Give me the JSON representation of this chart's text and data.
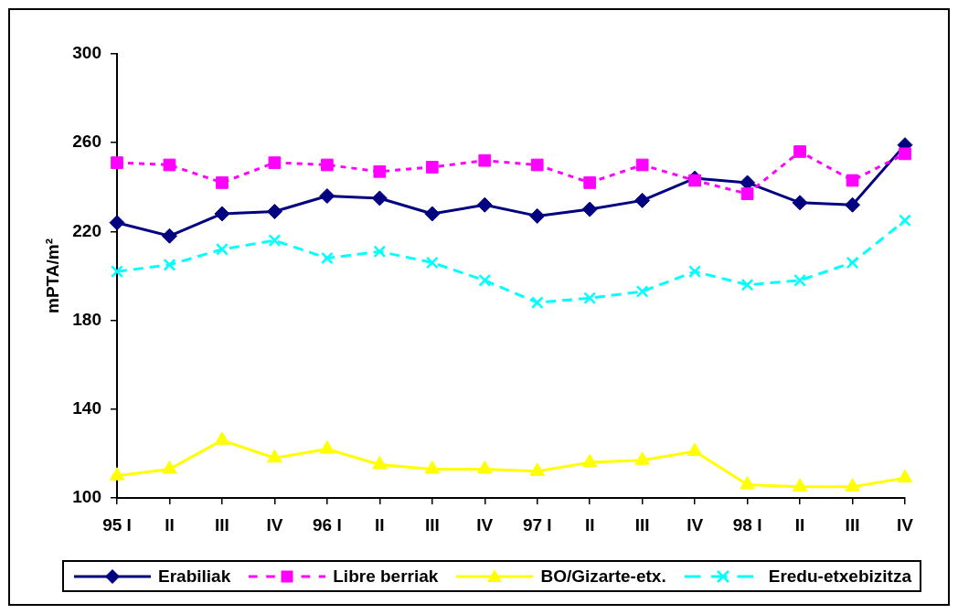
{
  "chart_data": {
    "type": "line",
    "ylabel": "mPTA/m²",
    "categories": [
      "95 I",
      "II",
      "III",
      "IV",
      "96 I",
      "II",
      "III",
      "IV",
      "97 I",
      "II",
      "III",
      "IV",
      "98 I",
      "II",
      "III",
      "IV"
    ],
    "series": [
      {
        "name": "Erabiliak",
        "color": "#000080",
        "marker": "diamond",
        "line_style": "solid",
        "values": [
          224,
          218,
          228,
          229,
          236,
          235,
          228,
          232,
          227,
          230,
          234,
          244,
          242,
          233,
          232,
          259
        ]
      },
      {
        "name": "Libre berriak",
        "color": "#ff00ff",
        "marker": "square",
        "line_style": "dotted",
        "values": [
          251,
          250,
          242,
          251,
          250,
          247,
          249,
          252,
          250,
          242,
          250,
          243,
          237,
          256,
          243,
          255
        ]
      },
      {
        "name": "BO/Gizarte-etx.",
        "color": "#ffff00",
        "marker": "triangle",
        "line_style": "solid",
        "values": [
          110,
          113,
          126,
          118,
          122,
          115,
          113,
          113,
          112,
          116,
          117,
          121,
          106,
          105,
          105,
          109
        ]
      },
      {
        "name": "Eredu-etxebizitza",
        "color": "#00ffff",
        "marker": "cross",
        "line_style": "dashed",
        "values": [
          202,
          205,
          212,
          216,
          208,
          211,
          206,
          198,
          188,
          190,
          193,
          202,
          196,
          198,
          206,
          225
        ]
      }
    ],
    "ylim": [
      100,
      300
    ],
    "yticks": [
      100,
      140,
      180,
      220,
      260,
      300
    ],
    "grid": false,
    "legend": "bottom"
  }
}
